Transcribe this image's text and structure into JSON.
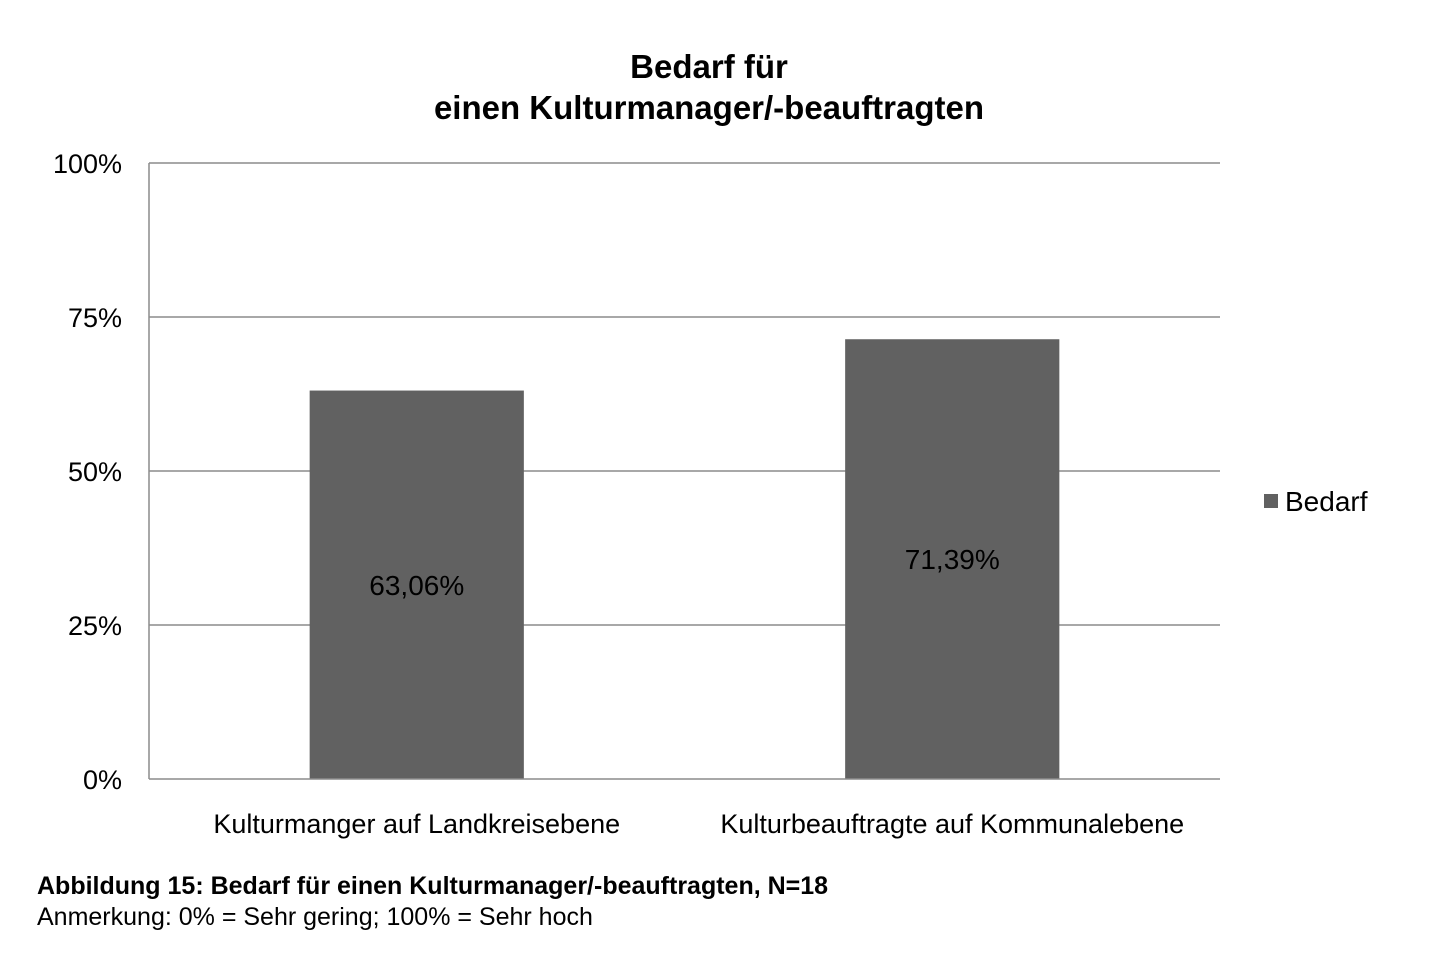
{
  "chart_data": {
    "type": "bar",
    "title_lines": [
      "Bedarf für",
      "einen Kulturmanager/-beauftragten"
    ],
    "categories": [
      "Kulturmanger auf Landkreisebene",
      "Kulturbeauftragte auf Kommunalebene"
    ],
    "series": [
      {
        "name": "Bedarf",
        "values": [
          63.06,
          71.39
        ],
        "data_labels": [
          "63,06%",
          "71,39%"
        ],
        "color": "#616161"
      }
    ],
    "ylim": [
      0,
      100
    ],
    "y_ticks": [
      0,
      25,
      50,
      75,
      100
    ],
    "y_tick_labels": [
      "0%",
      "25%",
      "50%",
      "75%",
      "100%"
    ],
    "xlabel": "",
    "ylabel": "",
    "grid": true,
    "legend_position": "right",
    "gridline_color": "#8c8c8c"
  },
  "caption": {
    "title": "Abbildung 15: Bedarf für einen Kulturmanager/-beauftragten, N=18",
    "note": "Anmerkung: 0% = Sehr gering; 100% = Sehr hoch"
  }
}
